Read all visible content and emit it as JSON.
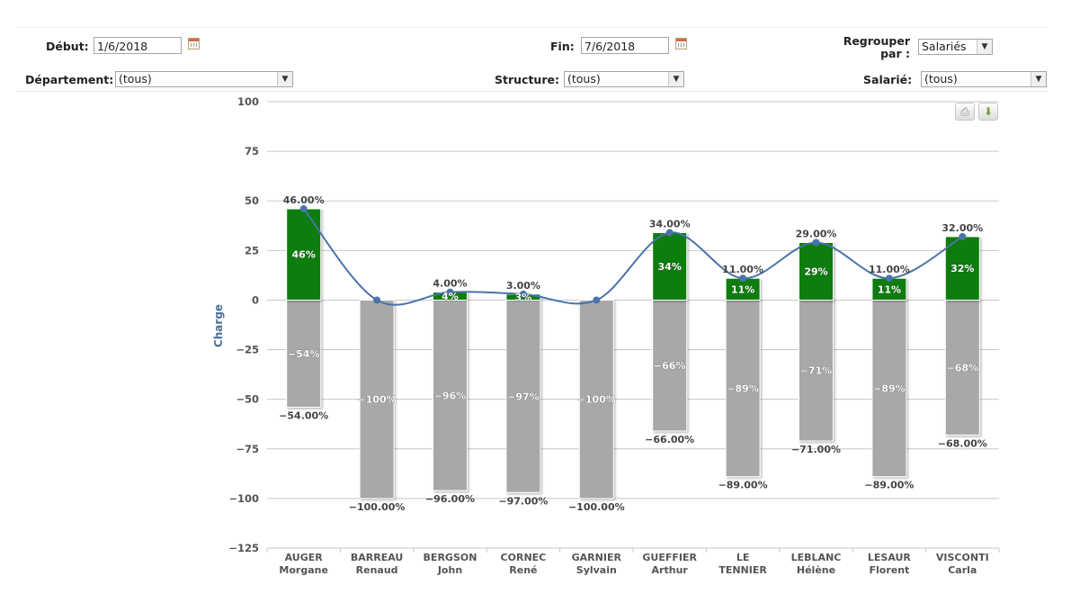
{
  "filters": {
    "debut_label": "Début:",
    "debut_value": "1/6/2018",
    "fin_label": "Fin:",
    "fin_value": "7/6/2018",
    "regrouper_label_line1": "Regrouper",
    "regrouper_label_line2": "par :",
    "regrouper_value": "Salariés",
    "departement_label": "Département:",
    "departement_value": "(tous)",
    "structure_label": "Structure:",
    "structure_value": "(tous)",
    "salarie_label": "Salarié:",
    "salarie_value": "(tous)"
  },
  "toolbar": {
    "print_icon": "printer-icon",
    "export_icon": "download-icon"
  },
  "chart_data": {
    "type": "bar",
    "ylabel": "Charge",
    "ylim": [
      -125,
      100
    ],
    "yticks": [
      100,
      75,
      50,
      25,
      0,
      -25,
      -50,
      -75,
      -100,
      -125
    ],
    "grid": true,
    "colors": {
      "positive": "#0a7d0a",
      "negative": "#a8a8a8",
      "line": "#4a73a8"
    },
    "categories": [
      [
        "AUGER",
        "Morgane"
      ],
      [
        "BARREAU",
        "Renaud"
      ],
      [
        "BERGSON",
        "John"
      ],
      [
        "CORNEC",
        "René"
      ],
      [
        "GARNIER",
        "Sylvain"
      ],
      [
        "GUEFFIER",
        "Arthur"
      ],
      [
        "LE",
        "TENNIER"
      ],
      [
        "LEBLANC",
        "Hélène"
      ],
      [
        "LESAUR",
        "Florent"
      ],
      [
        "VISCONTI",
        "Carla"
      ]
    ],
    "series": [
      {
        "type": "bar",
        "values": [
          46,
          0,
          4,
          3,
          0,
          34,
          11,
          29,
          11,
          32
        ],
        "inner_labels": [
          "46%",
          "",
          "4%",
          "3%",
          "",
          "34%",
          "11%",
          "29%",
          "11%",
          "32%"
        ],
        "outer_labels": [
          "46.00%",
          "",
          "4.00%",
          "3.00%",
          "",
          "34.00%",
          "11.00%",
          "29.00%",
          "11.00%",
          "32.00%"
        ]
      },
      {
        "type": "bar",
        "values": [
          -54,
          -100,
          -96,
          -97,
          -100,
          -66,
          -89,
          -71,
          -89,
          -68
        ],
        "inner_labels": [
          "-54%",
          "-100%",
          "-96%",
          "-97%",
          "-100%",
          "-66%",
          "-89%",
          "-71%",
          "-89%",
          "-68%"
        ],
        "outer_labels": [
          "-54.00%",
          "-100.00%",
          "-96.00%",
          "-97.00%",
          "-100.00%",
          "-66.00%",
          "-89.00%",
          "-71.00%",
          "-89.00%",
          "-68.00%"
        ]
      },
      {
        "type": "line",
        "values": [
          46,
          0,
          4,
          3,
          0,
          34,
          11,
          29,
          11,
          32
        ]
      }
    ]
  }
}
